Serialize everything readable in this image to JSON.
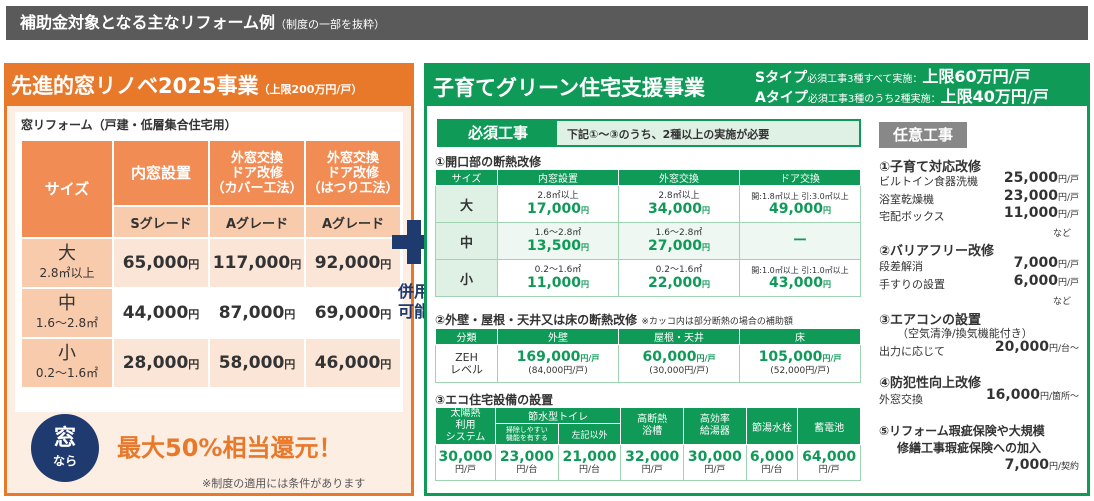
{
  "header": {
    "title": "補助金対象となる主なリフォーム例",
    "note": "（制度の一部を抜粋）"
  },
  "left": {
    "title": "先進的窓リノベ2025事業",
    "title_note": "（上限200万円/戸）",
    "subtitle": "窓リフォーム（戸建・低層集合住宅用）",
    "col_size": "サイズ",
    "cols": [
      "内窓設置",
      "外窓交換\nドア改修\n（カバー工法）",
      "外窓交換\nドア改修\n（はつり工法）"
    ],
    "grades": [
      "Sグレード",
      "Aグレード",
      "Aグレード"
    ],
    "rows": [
      {
        "size": "大",
        "range": "2.8㎡以上",
        "values": [
          "65,000",
          "117,000",
          "92,000"
        ]
      },
      {
        "size": "中",
        "range": "1.6～2.8㎡",
        "values": [
          "44,000",
          "87,000",
          "69,000"
        ]
      },
      {
        "size": "小",
        "range": "0.2～1.6㎡",
        "values": [
          "28,000",
          "58,000",
          "46,000"
        ]
      }
    ],
    "yen": "円",
    "badge_top": "窓",
    "badge_bottom": "なら",
    "refund": "最大50%相当還元！",
    "note": "※制度の適用には条件があります"
  },
  "combo": {
    "line1": "併用",
    "line2": "可能"
  },
  "right": {
    "title": "子育てグリーン住宅支援事業",
    "s_type": "Sタイプ",
    "s_cond": "必須工事3種すべて実施：",
    "s_limit": "上限60万円/戸",
    "a_type": "Aタイプ",
    "a_cond": "必須工事3種のうち2種実施：",
    "a_limit": "上限40万円/戸",
    "required_label": "必須工事",
    "required_note": "下記①～③のうち、2種以上の実施が必要",
    "sec1": "①開口部の断熱改修",
    "sec1_cols": [
      "サイズ",
      "内窓設置",
      "外窓交換",
      "ドア交換"
    ],
    "sec1_rows": [
      {
        "size": "大",
        "a_sub": "2.8㎡以上",
        "a": "17,000",
        "b_sub": "2.8㎡以上",
        "b": "34,000",
        "c_sub": "開:1.8㎡以上 引:3.0㎡以上",
        "c": "49,000"
      },
      {
        "size": "中",
        "a_sub": "1.6～2.8㎡",
        "a": "13,500",
        "b_sub": "1.6～2.8㎡",
        "b": "27,000",
        "c_sub": "",
        "c": "ー"
      },
      {
        "size": "小",
        "a_sub": "0.2～1.6㎡",
        "a": "11,000",
        "b_sub": "0.2～1.6㎡",
        "b": "22,000",
        "c_sub": "開:1.0㎡以上 引:1.0㎡以上",
        "c": "43,000"
      }
    ],
    "yen": "円",
    "sec2": "②外壁・屋根・天井又は床の断熱改修",
    "sec2_note": "※カッコ内は部分断熱の場合の補助額",
    "sec2_cols": [
      "分類",
      "外壁",
      "屋根・天井",
      "床"
    ],
    "sec2_row": {
      "label": "ZEH\nレベル",
      "vals": [
        "169,000",
        "60,000",
        "105,000"
      ],
      "subs": [
        "(84,000円/戸)",
        "(30,000円/戸)",
        "(52,000円/戸)"
      ],
      "unit": "円/戸"
    },
    "sec3": "③エコ住宅設備の設置",
    "sec3_cols": [
      "太陽熱\n利用\nシステム",
      "節水型トイレ",
      "高断熱\n浴槽",
      "高効率\n給湯器",
      "節湯水栓",
      "蓄電池"
    ],
    "sec3_toilet": [
      "掃除しやすい\n機能を有する",
      "左記以外"
    ],
    "sec3_vals": [
      "30,000",
      "23,000",
      "21,000",
      "32,000",
      "30,000",
      "6,000",
      "64,000"
    ],
    "sec3_units": [
      "円/戸",
      "円/台",
      "円/台",
      "円/戸",
      "円/戸",
      "円/台",
      "円/戸"
    ]
  },
  "optional": {
    "label": "任意工事",
    "h1": "①子育て対応改修",
    "i1": [
      {
        "name": "ビルトイン食器洗機",
        "val": "25,000",
        "unit": "円/戸"
      },
      {
        "name": "浴室乾燥機",
        "val": "23,000",
        "unit": "円/戸"
      },
      {
        "name": "宅配ボックス",
        "val": "11,000",
        "unit": "円/戸"
      }
    ],
    "etc": "など",
    "h2": "②バリアフリー改修",
    "i2": [
      {
        "name": "段差解消",
        "val": "7,000",
        "unit": "円/戸"
      },
      {
        "name": "手すりの設置",
        "val": "6,000",
        "unit": "円/戸"
      }
    ],
    "h3": "③エアコンの設置",
    "h3_sub": "（空気清浄/換気機能付き）",
    "i3": {
      "name": "出力に応じて",
      "val": "20,000",
      "unit": "円/台～"
    },
    "h4": "④防犯性向上改修",
    "i4": {
      "name": "外窓交換",
      "val": "16,000",
      "unit": "円/箇所～"
    },
    "h5a": "⑤リフォーム瑕疵保険や大規模",
    "h5b": "修繕工事瑕疵保険への加入",
    "i5": {
      "val": "7,000",
      "unit": "円/契約"
    }
  }
}
